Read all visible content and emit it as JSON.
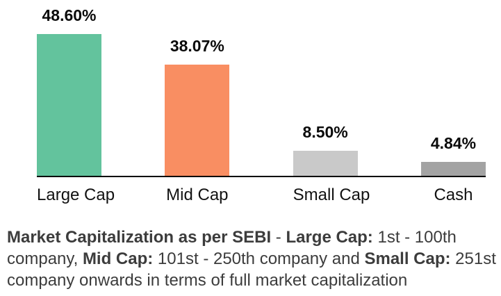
{
  "chart_data": {
    "type": "bar",
    "categories": [
      "Large Cap",
      "Mid Cap",
      "Small Cap",
      "Cash"
    ],
    "values": [
      48.6,
      38.07,
      8.5,
      4.84
    ],
    "data_labels": [
      "48.60%",
      "38.07%",
      "8.50%",
      "4.84%"
    ],
    "unit": "%",
    "title": "",
    "xlabel": "",
    "ylabel": "",
    "ylim": [
      0,
      55
    ],
    "grid": false,
    "legend": false,
    "bar_colors": [
      "#63c39d",
      "#f98e62",
      "#c9c9c9",
      "#a3a3a3"
    ],
    "axis_color": "#000000",
    "data_label_color": "#0a0a0a",
    "tick_label_color": "#121212"
  },
  "footnote": {
    "text_color": "#3c3c3c",
    "lines": [
      [
        {
          "text": "Market Capitalization as per SEBI",
          "bold": true
        },
        {
          "text": " - ",
          "bold": false
        },
        {
          "text": "Large Cap:",
          "bold": true
        },
        {
          "text": " 1st - 100th",
          "bold": false
        }
      ],
      [
        {
          "text": "company, ",
          "bold": false
        },
        {
          "text": "Mid Cap:",
          "bold": true
        },
        {
          "text": " 101st - 250th company and ",
          "bold": false
        },
        {
          "text": "Small Cap:",
          "bold": true
        },
        {
          "text": " 251st",
          "bold": false
        }
      ],
      [
        {
          "text": "company onwards in terms of full market capitalization",
          "bold": false
        }
      ]
    ]
  }
}
